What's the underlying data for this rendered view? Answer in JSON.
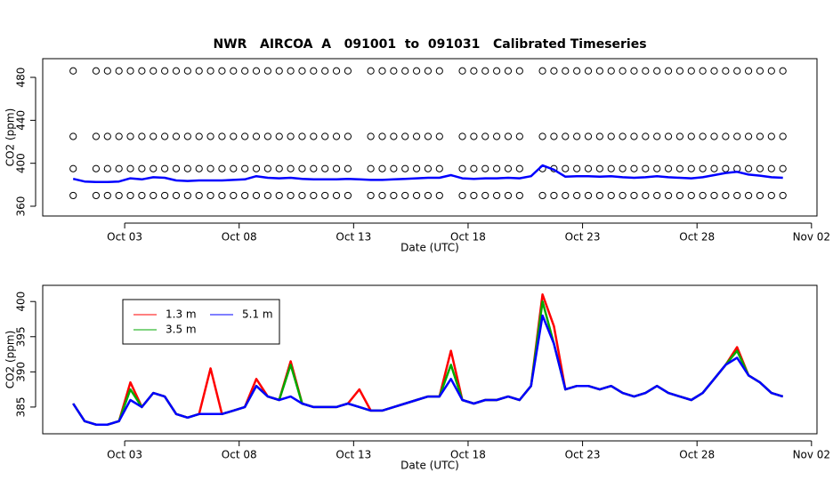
{
  "chart_data": [
    {
      "type": "line",
      "title": "NWR   AIRCOA  A   091001  to  091031   Calibrated Timeseries",
      "xlabel": "Date (UTC)",
      "ylabel": "CO2 (ppm)",
      "xlim": [
        -0.58,
        33.24
      ],
      "ylim": [
        350.9,
        497.4
      ],
      "xticks": [
        {
          "value": 3,
          "label": "Oct 03"
        },
        {
          "value": 8,
          "label": "Oct 08"
        },
        {
          "value": 13,
          "label": "Oct 13"
        },
        {
          "value": 18,
          "label": "Oct 18"
        },
        {
          "value": 23,
          "label": "Oct 23"
        },
        {
          "value": 28,
          "label": "Oct 28"
        },
        {
          "value": 33,
          "label": "Nov 02"
        }
      ],
      "yticks": [
        360,
        400,
        440,
        480
      ],
      "x": [
        0.75,
        1.25,
        1.75,
        2.25,
        2.75,
        3.25,
        3.75,
        4.25,
        4.75,
        5.25,
        5.75,
        6.25,
        6.75,
        7.25,
        7.75,
        8.25,
        8.75,
        9.25,
        9.75,
        10.25,
        10.75,
        11.25,
        11.75,
        12.25,
        12.75,
        13.25,
        13.75,
        14.25,
        14.75,
        15.25,
        15.75,
        16.25,
        16.75,
        17.25,
        17.75,
        18.25,
        18.75,
        19.25,
        19.75,
        20.25,
        20.75,
        21.25,
        21.75,
        22.25,
        22.75,
        23.25,
        23.75,
        24.25,
        24.75,
        25.25,
        25.75,
        26.25,
        26.75,
        27.25,
        27.75,
        28.25,
        28.75,
        29.25,
        29.75,
        30.25,
        30.75,
        31.25,
        31.75
      ],
      "series": [
        {
          "color": "#000000",
          "mode": "markers",
          "values": [
            486,
            null,
            486,
            486,
            486,
            486,
            486,
            486,
            486,
            486,
            486,
            486,
            486,
            486,
            486,
            486,
            486,
            486,
            486,
            486,
            486,
            486,
            486,
            486,
            486,
            null,
            486,
            486,
            486,
            486,
            486,
            486,
            486,
            null,
            486,
            486,
            486,
            486,
            486,
            486,
            null,
            486,
            486,
            486,
            486,
            486,
            486,
            486,
            486,
            486,
            486,
            486,
            486,
            486,
            486,
            486,
            486,
            486,
            486,
            486,
            486,
            486,
            486
          ]
        },
        {
          "color": "#000000",
          "mode": "markers",
          "values": [
            425,
            null,
            425,
            425,
            425,
            425,
            425,
            425,
            425,
            425,
            425,
            425,
            425,
            425,
            425,
            425,
            425,
            425,
            425,
            425,
            425,
            425,
            425,
            425,
            425,
            null,
            425,
            425,
            425,
            425,
            425,
            425,
            425,
            null,
            425,
            425,
            425,
            425,
            425,
            425,
            null,
            425,
            425,
            425,
            425,
            425,
            425,
            425,
            425,
            425,
            425,
            425,
            425,
            425,
            425,
            425,
            425,
            425,
            425,
            425,
            425,
            425,
            425
          ]
        },
        {
          "color": "#000000",
          "mode": "markers",
          "values": [
            395,
            null,
            395,
            395,
            395,
            395,
            395,
            395,
            395,
            395,
            395,
            395,
            395,
            395,
            395,
            395,
            395,
            395,
            395,
            395,
            395,
            395,
            395,
            395,
            395,
            null,
            395,
            395,
            395,
            395,
            395,
            395,
            395,
            null,
            395,
            395,
            395,
            395,
            395,
            395,
            null,
            395,
            395,
            395,
            395,
            395,
            395,
            395,
            395,
            395,
            395,
            395,
            395,
            395,
            395,
            395,
            395,
            395,
            395,
            395,
            395,
            395,
            395
          ]
        },
        {
          "color": "#000000",
          "mode": "markers",
          "values": [
            370,
            null,
            370,
            370,
            370,
            370,
            370,
            370,
            370,
            370,
            370,
            370,
            370,
            370,
            370,
            370,
            370,
            370,
            370,
            370,
            370,
            370,
            370,
            370,
            370,
            null,
            370,
            370,
            370,
            370,
            370,
            370,
            370,
            null,
            370,
            370,
            370,
            370,
            370,
            370,
            null,
            370,
            370,
            370,
            370,
            370,
            370,
            370,
            370,
            370,
            370,
            370,
            370,
            370,
            370,
            370,
            370,
            370,
            370,
            370,
            370,
            370,
            370
          ]
        },
        {
          "color": "#0000ff",
          "mode": "lines",
          "values": [
            385.5,
            383,
            382.5,
            382.5,
            383,
            386,
            385,
            387,
            386.5,
            384,
            383.5,
            384,
            384,
            384,
            384.5,
            385,
            388,
            386.5,
            386,
            386.5,
            385.5,
            385,
            385,
            385,
            385.5,
            385,
            384.5,
            384.5,
            385,
            385.5,
            386,
            386.5,
            386.5,
            389,
            386,
            385.5,
            386,
            386,
            386.5,
            386,
            388,
            398,
            394,
            387.5,
            388,
            388,
            387.5,
            388,
            387,
            386.5,
            387,
            388,
            387,
            386.5,
            386,
            387,
            389,
            391,
            392,
            389.5,
            388.5,
            387,
            386.5
          ]
        }
      ]
    },
    {
      "type": "line",
      "xlabel": "Date (UTC)",
      "ylabel": "CO2 (ppm)",
      "xlim": [
        -0.58,
        33.24
      ],
      "ylim": [
        381.2,
        402.3
      ],
      "xticks": [
        {
          "value": 3,
          "label": "Oct 03"
        },
        {
          "value": 8,
          "label": "Oct 08"
        },
        {
          "value": 13,
          "label": "Oct 13"
        },
        {
          "value": 18,
          "label": "Oct 18"
        },
        {
          "value": 23,
          "label": "Oct 23"
        },
        {
          "value": 28,
          "label": "Oct 28"
        },
        {
          "value": 33,
          "label": "Nov 02"
        }
      ],
      "yticks": [
        385,
        390,
        395,
        400
      ],
      "legend": "topleft",
      "x": [
        0.75,
        1.25,
        1.75,
        2.25,
        2.75,
        3.25,
        3.75,
        4.25,
        4.75,
        5.25,
        5.75,
        6.25,
        6.75,
        7.25,
        7.75,
        8.25,
        8.75,
        9.25,
        9.75,
        10.25,
        10.75,
        11.25,
        11.75,
        12.25,
        12.75,
        13.25,
        13.75,
        14.25,
        14.75,
        15.25,
        15.75,
        16.25,
        16.75,
        17.25,
        17.75,
        18.25,
        18.75,
        19.25,
        19.75,
        20.25,
        20.75,
        21.25,
        21.75,
        22.25,
        22.75,
        23.25,
        23.75,
        24.25,
        24.75,
        25.25,
        25.75,
        26.25,
        26.75,
        27.25,
        27.75,
        28.25,
        28.75,
        29.25,
        29.75,
        30.25,
        30.75,
        31.25,
        31.75
      ],
      "series": [
        {
          "name": "1.3 m",
          "color": "#ff0000",
          "mode": "lines",
          "values": [
            385.5,
            383,
            382.5,
            382.5,
            383,
            388.5,
            385,
            387,
            386.5,
            384,
            383.5,
            384,
            390.5,
            384,
            384.5,
            385,
            389,
            386.5,
            386,
            391.5,
            385.5,
            385,
            385,
            385,
            385.5,
            387.5,
            384.5,
            384.5,
            385,
            385.5,
            386,
            386.5,
            386.5,
            393,
            386,
            385.5,
            386,
            386,
            386.5,
            386,
            388,
            401,
            396.5,
            387.5,
            388,
            388,
            387.5,
            388,
            387,
            386.5,
            387,
            388,
            387,
            386.5,
            386,
            387,
            389,
            391,
            393.5,
            389.5,
            388.5,
            387,
            386.5
          ]
        },
        {
          "name": "3.5 m",
          "color": "#00aa00",
          "mode": "lines",
          "values": [
            385.5,
            383,
            382.5,
            382.5,
            383,
            387.5,
            385,
            387,
            386.5,
            384,
            383.5,
            384,
            384,
            384,
            384.5,
            385,
            388,
            386.5,
            386,
            391,
            385.5,
            385,
            385,
            385,
            385.5,
            385,
            384.5,
            384.5,
            385,
            385.5,
            386,
            386.5,
            386.5,
            391,
            386,
            385.5,
            386,
            386,
            386.5,
            386,
            388,
            400,
            394,
            387.5,
            388,
            388,
            387.5,
            388,
            387,
            386.5,
            387,
            388,
            387,
            386.5,
            386,
            387,
            389,
            391,
            393,
            389.5,
            388.5,
            387,
            386.5
          ]
        },
        {
          "name": "5.1 m",
          "color": "#0000ff",
          "mode": "lines",
          "values": [
            385.5,
            383,
            382.5,
            382.5,
            383,
            386,
            385,
            387,
            386.5,
            384,
            383.5,
            384,
            384,
            384,
            384.5,
            385,
            388,
            386.5,
            386,
            386.5,
            385.5,
            385,
            385,
            385,
            385.5,
            385,
            384.5,
            384.5,
            385,
            385.5,
            386,
            386.5,
            386.5,
            389,
            386,
            385.5,
            386,
            386,
            386.5,
            386,
            388,
            398,
            394,
            387.5,
            388,
            388,
            387.5,
            388,
            387,
            386.5,
            387,
            388,
            387,
            386.5,
            386,
            387,
            389,
            391,
            392,
            389.5,
            388.5,
            387,
            386.5
          ]
        }
      ]
    }
  ]
}
